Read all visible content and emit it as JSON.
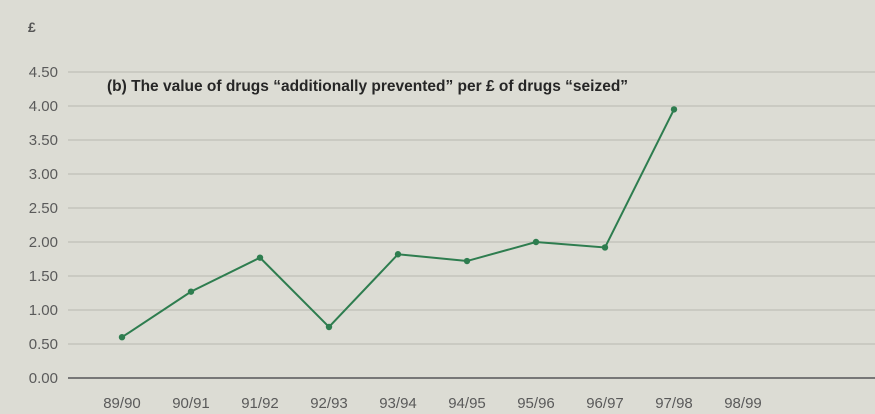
{
  "chart_data": {
    "type": "line",
    "title": "(b) The value of drugs “additionally prevented” per £ of drugs “seized”",
    "ylabel": "£",
    "xlabel": "",
    "categories": [
      "89/90",
      "90/91",
      "91/92",
      "92/93",
      "93/94",
      "94/95",
      "95/96",
      "96/97",
      "97/98",
      "98/99"
    ],
    "series": [
      {
        "values": [
          0.6,
          1.27,
          1.77,
          0.75,
          1.82,
          1.72,
          2.0,
          1.92,
          3.95,
          null
        ]
      }
    ],
    "yticks": [
      "0.00",
      "0.50",
      "1.00",
      "1.50",
      "2.00",
      "2.50",
      "3.00",
      "3.50",
      "4.00",
      "4.50"
    ],
    "ylim": [
      0,
      4.5
    ],
    "grid": true,
    "legend": "none",
    "colors": {
      "line": "#2e7d4f",
      "grid": "#b9b9b1",
      "axis": "#777777",
      "background": "#dcdcd4"
    }
  }
}
